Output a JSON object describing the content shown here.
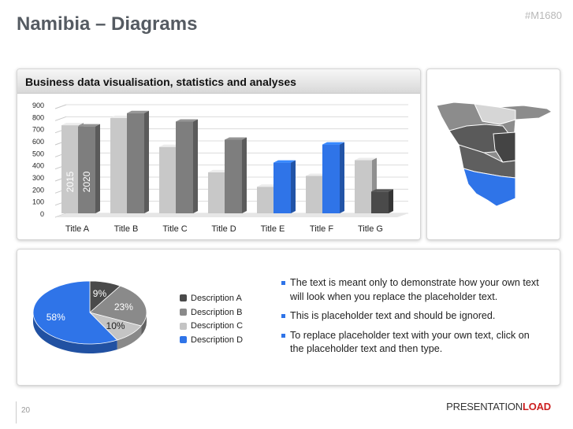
{
  "slide": {
    "title": "Namibia – Diagrams",
    "code": "#M1680",
    "page_number": "20",
    "brand_part1": "PRESENTATION",
    "brand_part2": "LOAD"
  },
  "chart_panel": {
    "header": "Business data visualisation, statistics and analyses"
  },
  "chart_data": [
    {
      "type": "bar",
      "categories": [
        "Title A",
        "Title B",
        "Title C",
        "Title D",
        "Title E",
        "Title F",
        "Title G"
      ],
      "series": [
        {
          "name": "2015",
          "values": [
            730,
            790,
            550,
            340,
            220,
            310,
            440
          ]
        },
        {
          "name": "2020",
          "values": [
            720,
            830,
            760,
            610,
            420,
            570,
            180
          ]
        }
      ],
      "ylim": [
        0,
        900
      ],
      "yticks": [
        0,
        100,
        200,
        300,
        400,
        500,
        600,
        700,
        800,
        900
      ],
      "grid": true
    },
    {
      "type": "pie",
      "labels": [
        "Description A",
        "Description B",
        "Description C",
        "Description D"
      ],
      "values": [
        9,
        23,
        10,
        58
      ],
      "colors": [
        "#4a4a4a",
        "#8a8a8a",
        "#c4c4c4",
        "#2f74e8"
      ]
    }
  ],
  "bar_colors": {
    "series_2015": "#c8c8c8",
    "series_2020": "#7e7e7e",
    "highlight_2020": "#2f74e8",
    "dark_2020": "#4a4a4a"
  },
  "map": {
    "icon": "namibia-map-icon",
    "highlight_color": "#2f74e8"
  },
  "bullets": [
    "The text is meant only to demonstrate how your own text will look when you replace the placeholder text.",
    "This is placeholder text and should be ignored.",
    "To replace placeholder text with your own text, click on the placeholder text and then type."
  ]
}
